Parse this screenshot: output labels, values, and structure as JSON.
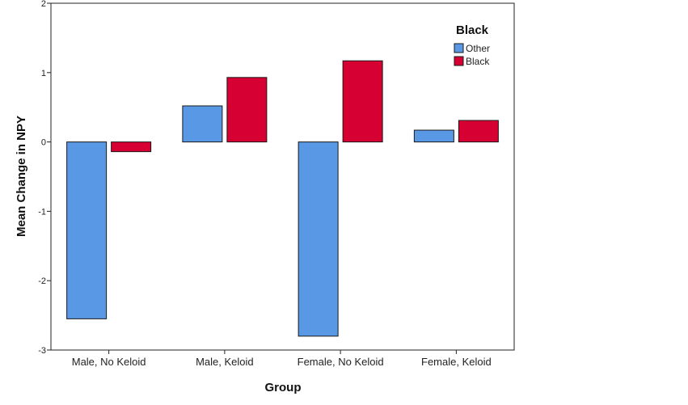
{
  "chart_data": {
    "type": "bar",
    "categories": [
      "Male, No Keloid",
      "Male, Keloid",
      "Female, No Keloid",
      "Female, Keloid"
    ],
    "series": [
      {
        "name": "Other",
        "color": "#5898e4",
        "values": [
          -2.55,
          0.52,
          -2.8,
          0.17
        ]
      },
      {
        "name": "Black",
        "color": "#d60032",
        "values": [
          -0.14,
          0.93,
          1.17,
          0.31
        ]
      }
    ],
    "title": "",
    "xlabel": "Group",
    "ylabel": "Mean Change in NPY",
    "ylim": [
      -3,
      2
    ],
    "yticks": [
      2,
      1,
      0,
      -1,
      -2,
      -3
    ],
    "grid": false,
    "legend": {
      "title": "Black",
      "position": "top-right"
    }
  }
}
